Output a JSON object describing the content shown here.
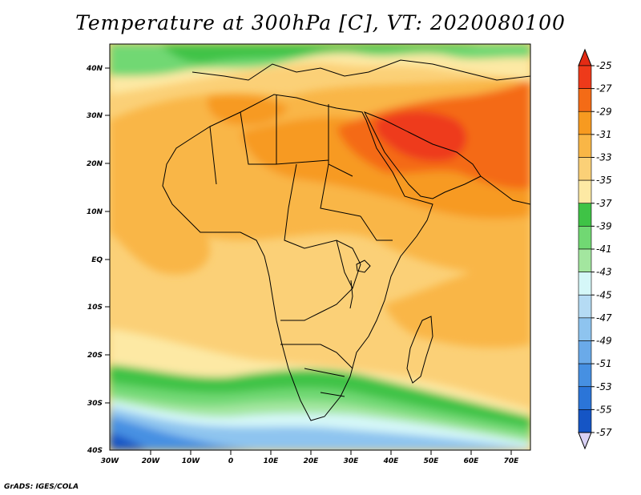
{
  "title": "Temperature at 300hPa [C], VT: 2020080100",
  "credit": "GrADS: IGES/COLA",
  "map": {
    "lat_labels": [
      "40N",
      "30N",
      "20N",
      "10N",
      "EQ",
      "10S",
      "20S",
      "30S",
      "40S"
    ],
    "lon_labels": [
      "30W",
      "20W",
      "10W",
      "0",
      "10E",
      "20E",
      "30E",
      "40E",
      "50E",
      "60E",
      "70E"
    ],
    "extent": {
      "lon_min": -30,
      "lon_max": 75,
      "lat_min": -40,
      "lat_max": 45
    }
  },
  "colorbar": {
    "labels": [
      "-25",
      "-27",
      "-29",
      "-31",
      "-33",
      "-35",
      "-37",
      "-39",
      "-41",
      "-43",
      "-45",
      "-47",
      "-49",
      "-51",
      "-53",
      "-55",
      "-57"
    ],
    "colors": [
      "#ee3a1a",
      "#f46b16",
      "#f79a20",
      "#f9b646",
      "#fbd077",
      "#fde9a4",
      "#3fc346",
      "#71d873",
      "#a3e69f",
      "#d5f7f8",
      "#b5dbf4",
      "#8ec4ef",
      "#6aaae9",
      "#4690e2",
      "#2b75d8",
      "#1555c5",
      "#0a2b8a"
    ],
    "high_arrow_color": "#e32b14",
    "low_arrow_color": "#d9d2f5"
  },
  "colors": {
    "land_outline": "#000000",
    "base_field": "#fbd077"
  }
}
